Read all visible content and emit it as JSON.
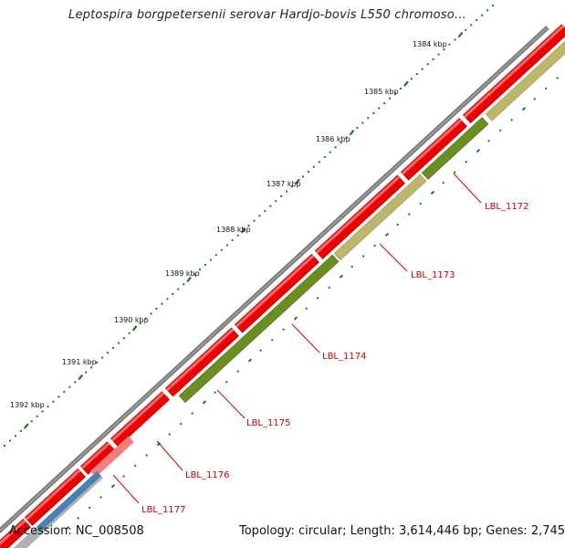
{
  "title": "Leptospira borgpetersenii serovar Hardjo-bovis L550 chromoso…",
  "footer": {
    "accession": "Accession: NC_008508",
    "topology": "Topology: circular; Length: 3,614,446 bp; Genes: 2,745"
  },
  "scale": {
    "ticks": [
      {
        "label": "1384 kbp"
      },
      {
        "label": "1385 kbp"
      },
      {
        "label": "1386 kbp"
      },
      {
        "label": "1387 kbp"
      },
      {
        "label": "1388 kbp"
      },
      {
        "label": "1389 kbp"
      },
      {
        "label": "1390 kbp"
      },
      {
        "label": "1391 kbp"
      },
      {
        "label": "1392 kbp"
      }
    ]
  },
  "genes": [
    {
      "name": "LBL_1172"
    },
    {
      "name": "LBL_1173"
    },
    {
      "name": "LBL_1174"
    },
    {
      "name": "LBL_1175"
    },
    {
      "name": "LBL_1176"
    },
    {
      "name": "LBL_1177"
    }
  ],
  "colors": {
    "backbone": "#808080",
    "forward_cds": "#ee0000",
    "forward_cds_light": "#f08080",
    "reverse_dark": "#6b8e23",
    "reverse_light": "#bdb76b",
    "blue_feature": "#4682b4",
    "gray_feature": "#b0b0b0",
    "tick_color": "#1a7a1a",
    "gene_label": "#cc0000"
  }
}
